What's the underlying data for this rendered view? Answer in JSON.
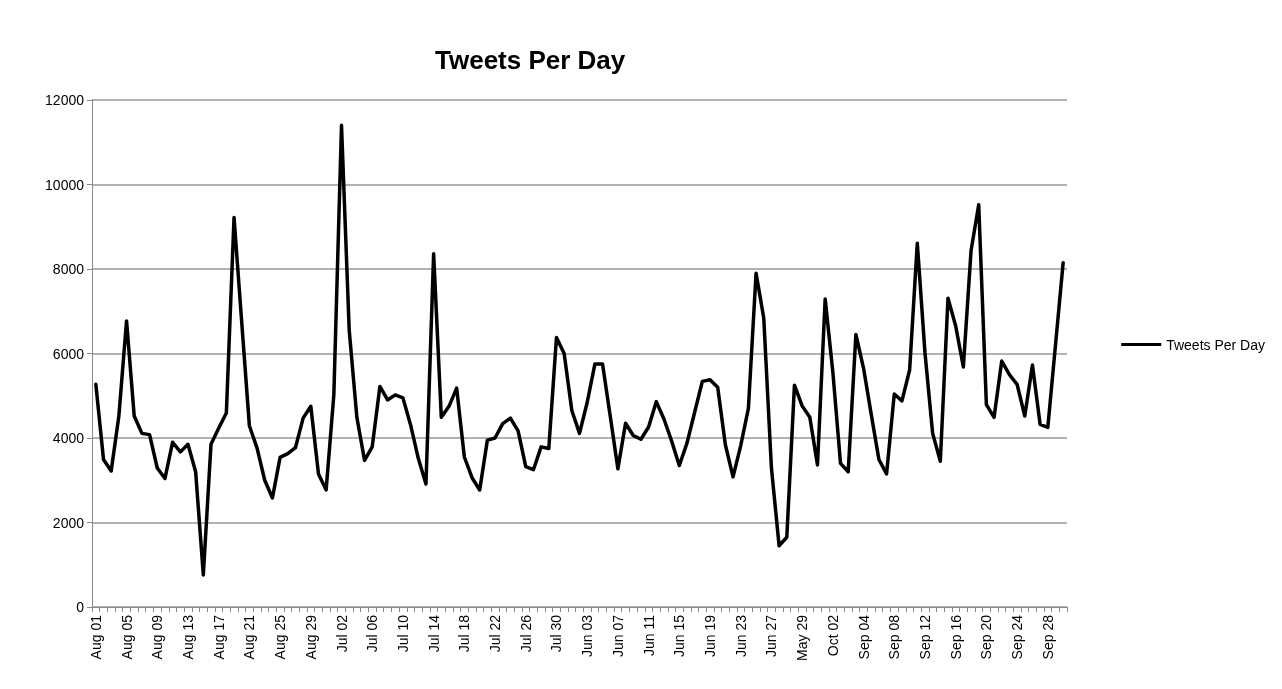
{
  "chart_data": {
    "type": "line",
    "title": "Tweets Per Day",
    "categories": [
      "Aug 01",
      null,
      null,
      null,
      "Aug 05",
      null,
      null,
      null,
      "Aug 09",
      null,
      null,
      null,
      "Aug 13",
      null,
      null,
      null,
      "Aug 17",
      null,
      null,
      null,
      "Aug 21",
      null,
      null,
      null,
      "Aug 25",
      null,
      null,
      null,
      "Aug 29",
      null,
      null,
      null,
      "Jul 02",
      null,
      null,
      null,
      "Jul 06",
      null,
      null,
      null,
      "Jul 10",
      null,
      null,
      null,
      "Jul 14",
      null,
      null,
      null,
      "Jul 18",
      null,
      null,
      null,
      "Jul 22",
      null,
      null,
      null,
      "Jul 26",
      null,
      null,
      null,
      "Jul 30",
      null,
      null,
      null,
      "Jun 03",
      null,
      null,
      null,
      "Jun 07",
      null,
      null,
      null,
      "Jun 11",
      null,
      null,
      null,
      "Jun 15",
      null,
      null,
      null,
      "Jun 19",
      null,
      null,
      null,
      "Jun 23",
      null,
      null,
      null,
      "Jun 27",
      null,
      null,
      null,
      "May 29",
      null,
      null,
      null,
      "Oct 02",
      null,
      null,
      null,
      "Sep 04",
      null,
      null,
      null,
      "Sep 08",
      null,
      null,
      null,
      "Sep 12",
      null,
      null,
      null,
      "Sep 16",
      null,
      null,
      null,
      "Sep 20",
      null,
      null,
      null,
      "Sep 24",
      null,
      null,
      null,
      "Sep 28",
      null,
      null
    ],
    "series": [
      {
        "name": "Tweets Per Day",
        "color": "#000000",
        "values": [
          5270,
          3490,
          3220,
          4520,
          6770,
          4520,
          4110,
          4080,
          3290,
          3040,
          3900,
          3670,
          3850,
          3200,
          760,
          3850,
          4230,
          4590,
          9220,
          6740,
          4290,
          3760,
          3000,
          2580,
          3540,
          3630,
          3770,
          4470,
          4750,
          3150,
          2770,
          5020,
          11400,
          6560,
          4490,
          3470,
          3790,
          5220,
          4900,
          5020,
          4950,
          4310,
          3520,
          2910,
          8360,
          4490,
          4750,
          5180,
          3550,
          3060,
          2770,
          3950,
          4000,
          4340,
          4470,
          4170,
          3320,
          3250,
          3790,
          3750,
          6380,
          6000,
          4650,
          4110,
          4840,
          5750,
          5750,
          4520,
          3270,
          4350,
          4060,
          3970,
          4260,
          4860,
          4450,
          3930,
          3350,
          3880,
          4610,
          5340,
          5380,
          5200,
          3840,
          3080,
          3820,
          4700,
          7900,
          6840,
          3290,
          1450,
          1650,
          5250,
          4760,
          4490,
          3360,
          7290,
          5560,
          3400,
          3200,
          6450,
          5650,
          4560,
          3490,
          3150,
          5040,
          4880,
          5610,
          8610,
          6020,
          4110,
          3450,
          7310,
          6650,
          5680,
          8430,
          9520,
          4790,
          4490,
          5820,
          5500,
          5270,
          4520,
          5730,
          4320,
          4250,
          6200,
          8150
        ]
      }
    ],
    "ylim": [
      0,
      12000
    ],
    "yticks": [
      0,
      2000,
      4000,
      6000,
      8000,
      10000,
      12000
    ],
    "grid": "y",
    "legend": "right",
    "marker": "none",
    "line_style": "solid"
  }
}
